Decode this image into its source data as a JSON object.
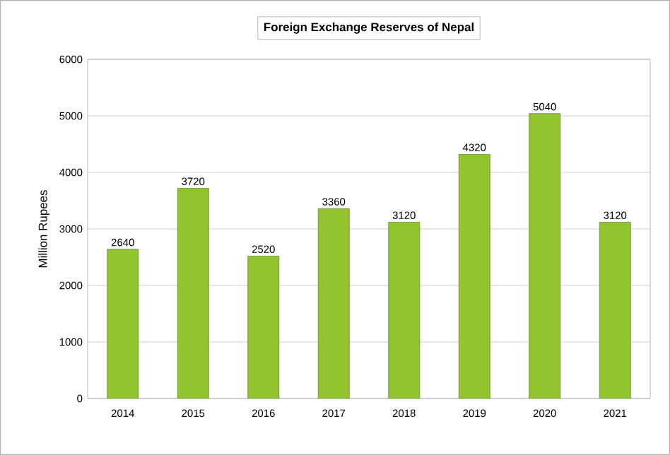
{
  "chart_data": {
    "type": "bar",
    "title": "Foreign Exchange Reserves of Nepal",
    "ylabel": "Million Rupees",
    "categories": [
      "2014",
      "2015",
      "2016",
      "2017",
      "2018",
      "2019",
      "2020",
      "2021"
    ],
    "values": [
      2640,
      3720,
      2520,
      3360,
      3120,
      4320,
      5040,
      3120
    ],
    "color": "#92c430",
    "ylim": [
      0,
      6000
    ],
    "yticks": [
      0,
      1000,
      2000,
      3000,
      4000,
      5000,
      6000
    ],
    "grid": "y",
    "data_labels": true
  }
}
